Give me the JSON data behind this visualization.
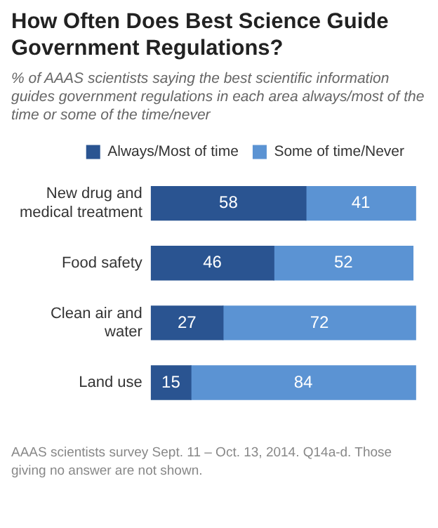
{
  "chart_data": {
    "type": "bar",
    "orientation": "horizontal",
    "stacked": true,
    "title": "How Often Does Best Science Guide Government Regulations?",
    "subtitle": "% of AAAS scientists saying the best scientific information guides government regulations in each area always/most of the time or some of the time/never",
    "categories": [
      "New drug and medical treatment",
      "Food safety",
      "Clean air and water",
      "Land use"
    ],
    "series": [
      {
        "name": "Always/Most of time",
        "color": "#2a5491",
        "values": [
          58,
          46,
          27,
          15
        ]
      },
      {
        "name": "Some of time/Never",
        "color": "#5b93d3",
        "values": [
          41,
          52,
          72,
          84
        ]
      }
    ],
    "data_labels": true,
    "legend": "top",
    "tick_labels": "y",
    "grid": false,
    "annotations": [
      "AAAS scientists survey Sept. 11 – Oct. 13, 2014. Q14a-d. Those giving no answer are not shown."
    ]
  }
}
